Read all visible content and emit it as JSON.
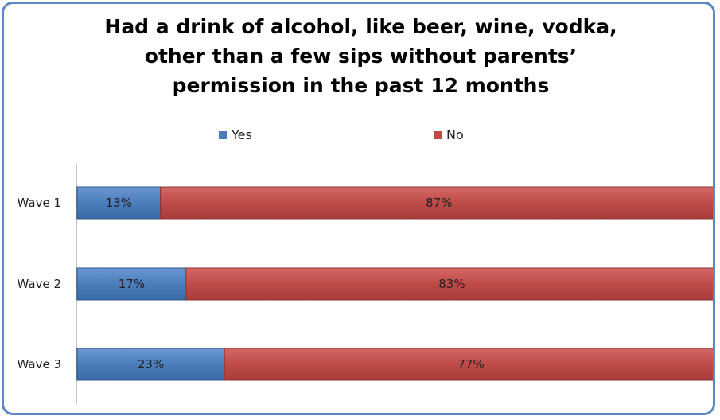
{
  "chart_data": {
    "type": "bar",
    "orientation": "horizontal",
    "stacked": true,
    "title": "Had a drink of alcohol, like beer, wine, vodka, other than a few sips without parents' permission in the past 12 months",
    "title_lines": [
      "Had a drink of alcohol, like beer, wine, vodka,",
      "other than a few sips without parents’",
      "permission in the past 12 months"
    ],
    "categories": [
      "Wave 1",
      "Wave 2",
      "Wave 3"
    ],
    "series": [
      {
        "name": "Yes",
        "values": [
          13,
          17,
          23
        ],
        "labels": [
          "13%",
          "17%",
          "23%"
        ],
        "color": "#4a7ebb"
      },
      {
        "name": "No",
        "values": [
          87,
          83,
          77
        ],
        "labels": [
          "87%",
          "83%",
          "77%"
        ],
        "color": "#be4b48"
      }
    ],
    "xlim": [
      0,
      100
    ],
    "legend": "top",
    "grid": false
  }
}
